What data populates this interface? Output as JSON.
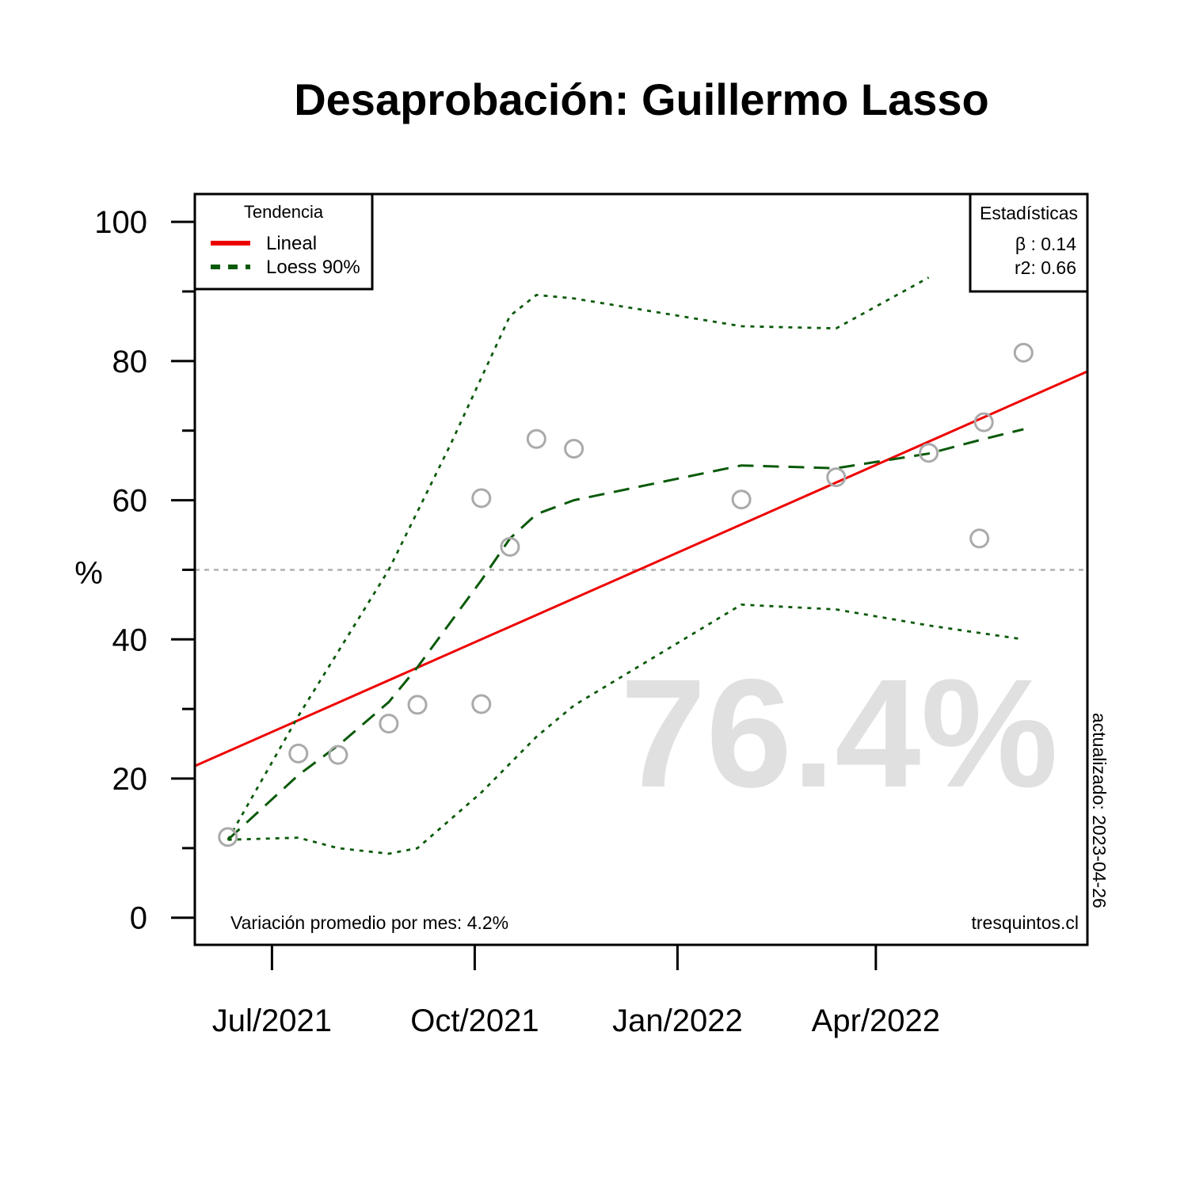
{
  "chart_data": {
    "type": "scatter",
    "title": "Desaprobación: Guillermo Lasso",
    "ylabel": "%",
    "xlabel": "",
    "ylim": [
      0,
      100
    ],
    "xlim": [
      "2021-05-27",
      "2022-07-06"
    ],
    "x_ticks": [
      {
        "date": "2021-07-01",
        "label": "Jul/2021"
      },
      {
        "date": "2021-10-01",
        "label": "Oct/2021"
      },
      {
        "date": "2022-01-01",
        "label": "Jan/2022"
      },
      {
        "date": "2022-04-01",
        "label": "Apr/2022"
      }
    ],
    "y_ticks_labeled": [
      0,
      20,
      40,
      60,
      80,
      100
    ],
    "y_ticks_minor": [
      10,
      30,
      50,
      70,
      90
    ],
    "reference_line_y": 50,
    "points": [
      {
        "x": "2021-06-11",
        "y": 11.6
      },
      {
        "x": "2021-07-13",
        "y": 23.6
      },
      {
        "x": "2021-07-31",
        "y": 23.4
      },
      {
        "x": "2021-08-23",
        "y": 27.9
      },
      {
        "x": "2021-09-05",
        "y": 30.6
      },
      {
        "x": "2021-10-04",
        "y": 30.7
      },
      {
        "x": "2021-10-04",
        "y": 60.3
      },
      {
        "x": "2021-10-17",
        "y": 53.3
      },
      {
        "x": "2021-10-29",
        "y": 68.8
      },
      {
        "x": "2021-11-15",
        "y": 67.4
      },
      {
        "x": "2022-01-30",
        "y": 60.1
      },
      {
        "x": "2022-03-14",
        "y": 63.3
      },
      {
        "x": "2022-04-25",
        "y": 66.8
      },
      {
        "x": "2022-05-18",
        "y": 54.5
      },
      {
        "x": "2022-05-20",
        "y": 71.2
      },
      {
        "x": "2022-06-07",
        "y": 81.2
      }
    ],
    "series": [
      {
        "name": "Lineal",
        "color": "#ee0000",
        "style": "solid",
        "points": [
          {
            "x": "2021-05-27",
            "y": 21.8
          },
          {
            "x": "2022-07-06",
            "y": 78.5
          }
        ]
      },
      {
        "name": "Loess 90%",
        "color": "#0a5a0a",
        "style": "dashed",
        "points": [
          {
            "x": "2021-06-11",
            "y": 11.2
          },
          {
            "x": "2021-07-13",
            "y": 20.5
          },
          {
            "x": "2021-08-01",
            "y": 25.0
          },
          {
            "x": "2021-08-23",
            "y": 31.0
          },
          {
            "x": "2021-09-05",
            "y": 36.0
          },
          {
            "x": "2021-10-04",
            "y": 48.5
          },
          {
            "x": "2021-10-17",
            "y": 54.5
          },
          {
            "x": "2021-10-29",
            "y": 58.0
          },
          {
            "x": "2021-11-15",
            "y": 60.0
          },
          {
            "x": "2022-01-30",
            "y": 65.0
          },
          {
            "x": "2022-03-14",
            "y": 64.6
          },
          {
            "x": "2022-04-25",
            "y": 66.7
          },
          {
            "x": "2022-05-20",
            "y": 68.8
          },
          {
            "x": "2022-06-07",
            "y": 70.2
          }
        ]
      },
      {
        "name": "upper band",
        "color": "#0a5a0a",
        "style": "dotted",
        "points": [
          {
            "x": "2021-06-11",
            "y": 11.2
          },
          {
            "x": "2021-07-13",
            "y": 29.0
          },
          {
            "x": "2021-08-23",
            "y": 50.0
          },
          {
            "x": "2021-09-20",
            "y": 68.0
          },
          {
            "x": "2021-10-17",
            "y": 86.5
          },
          {
            "x": "2021-10-29",
            "y": 89.5
          },
          {
            "x": "2021-11-15",
            "y": 89.0
          },
          {
            "x": "2022-01-30",
            "y": 85.0
          },
          {
            "x": "2022-03-14",
            "y": 84.7
          },
          {
            "x": "2022-04-25",
            "y": 92.0
          }
        ]
      },
      {
        "name": "lower band",
        "color": "#0a5a0a",
        "style": "dotted",
        "points": [
          {
            "x": "2021-06-11",
            "y": 11.2
          },
          {
            "x": "2021-07-13",
            "y": 11.5
          },
          {
            "x": "2021-07-31",
            "y": 10.0
          },
          {
            "x": "2021-08-23",
            "y": 9.2
          },
          {
            "x": "2021-09-05",
            "y": 10.0
          },
          {
            "x": "2021-10-04",
            "y": 18.0
          },
          {
            "x": "2021-10-29",
            "y": 26.0
          },
          {
            "x": "2021-11-15",
            "y": 30.5
          },
          {
            "x": "2022-01-30",
            "y": 45.0
          },
          {
            "x": "2022-03-14",
            "y": 44.3
          },
          {
            "x": "2022-04-25",
            "y": 42.0
          },
          {
            "x": "2022-06-07",
            "y": 40.0
          }
        ]
      }
    ],
    "legend": {
      "title": "Tendencia",
      "position": "top-left",
      "entries": [
        {
          "label": "Lineal",
          "color": "#ee0000",
          "style": "solid"
        },
        {
          "label": "Loess 90%",
          "color": "#0a5a0a",
          "style": "dashed"
        }
      ]
    },
    "stats_box": {
      "title": "Estadísticas",
      "position": "top-right",
      "beta": "β : 0.14",
      "r2": "r2: 0.66"
    },
    "big_value": "76.4%",
    "footer_left": "Variación promedio por mes: 4.2%",
    "footer_right": "tresquintos.cl",
    "side_note": "actualizado: 2023-04-26",
    "colors": {
      "points": "#aaaaaa",
      "reference_line": "#b0b0b0",
      "big_value": "#e0e0e0",
      "axis": "#000000"
    }
  }
}
